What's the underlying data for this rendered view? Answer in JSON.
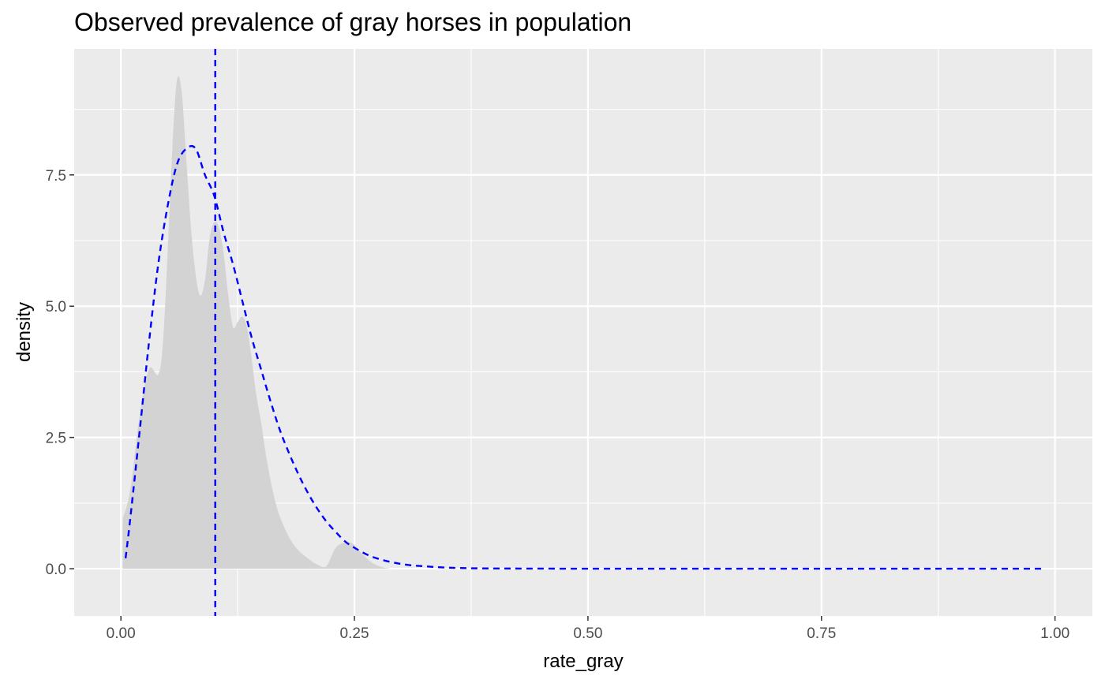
{
  "chart_data": {
    "type": "area",
    "title": "Observed prevalence of gray horses in population",
    "xlabel": "rate_gray",
    "ylabel": "density",
    "xlim": [
      -0.05,
      1.04
    ],
    "ylim": [
      -0.9,
      9.9
    ],
    "x_ticks": [
      0.0,
      0.25,
      0.5,
      0.75,
      1.0
    ],
    "x_tick_labels": [
      "0.00",
      "0.25",
      "0.50",
      "0.75",
      "1.00"
    ],
    "y_ticks": [
      0.0,
      2.5,
      5.0,
      7.5
    ],
    "y_tick_labels": [
      "0.0",
      "2.5",
      "5.0",
      "7.5"
    ],
    "x_minor_ticks": [
      0.125,
      0.375,
      0.625,
      0.875
    ],
    "y_minor_ticks": [
      1.25,
      3.75,
      6.25,
      8.75
    ],
    "grid": true,
    "legend": "none",
    "colors": {
      "panel_background": "#ebebeb",
      "grid": "#ffffff",
      "density_fill": "#d3d3d3",
      "reference_line": "#0000ff"
    },
    "series": [
      {
        "kind": "density-area",
        "x": [
          0.002,
          0.01,
          0.02,
          0.03,
          0.04,
          0.045,
          0.05,
          0.055,
          0.06,
          0.065,
          0.07,
          0.075,
          0.08,
          0.085,
          0.09,
          0.095,
          0.1,
          0.105,
          0.11,
          0.115,
          0.12,
          0.125,
          0.13,
          0.135,
          0.14,
          0.145,
          0.15,
          0.155,
          0.16,
          0.165,
          0.17,
          0.18,
          0.19,
          0.2,
          0.21,
          0.22,
          0.23,
          0.24,
          0.245,
          0.25,
          0.26,
          0.27,
          0.28,
          0.29,
          0.3
        ],
        "y": [
          0.95,
          1.5,
          2.9,
          3.8,
          3.7,
          4.3,
          6.0,
          8.0,
          9.3,
          9.1,
          7.8,
          6.5,
          5.6,
          5.2,
          5.5,
          6.3,
          6.6,
          6.5,
          6.0,
          5.2,
          4.6,
          4.7,
          4.8,
          4.6,
          4.0,
          3.3,
          2.8,
          2.2,
          1.7,
          1.3,
          1.0,
          0.6,
          0.35,
          0.2,
          0.08,
          0.05,
          0.4,
          0.5,
          0.5,
          0.45,
          0.25,
          0.1,
          0.03,
          0.0,
          0.0
        ]
      },
      {
        "kind": "fitted-curve",
        "style": "dashed",
        "color": "#0000ff",
        "x": [
          0.005,
          0.01,
          0.02,
          0.03,
          0.04,
          0.05,
          0.06,
          0.07,
          0.08,
          0.09,
          0.1,
          0.11,
          0.12,
          0.13,
          0.14,
          0.15,
          0.16,
          0.17,
          0.18,
          0.19,
          0.2,
          0.21,
          0.22,
          0.23,
          0.24,
          0.25,
          0.27,
          0.3,
          0.33,
          0.36,
          0.4,
          0.5,
          0.6,
          0.7,
          0.8,
          0.9,
          0.99
        ],
        "y": [
          0.2,
          0.95,
          2.6,
          4.3,
          5.8,
          6.9,
          7.7,
          8.0,
          8.0,
          7.5,
          7.1,
          6.4,
          5.8,
          5.1,
          4.4,
          3.8,
          3.2,
          2.65,
          2.2,
          1.8,
          1.45,
          1.15,
          0.9,
          0.7,
          0.52,
          0.4,
          0.22,
          0.09,
          0.04,
          0.015,
          0.005,
          0.0,
          0.0,
          0.0,
          0.0,
          0.0,
          0.0
        ]
      }
    ],
    "reference_lines": [
      {
        "orientation": "vertical",
        "x": 0.101,
        "style": "dashed",
        "color": "#0000ff"
      }
    ]
  }
}
